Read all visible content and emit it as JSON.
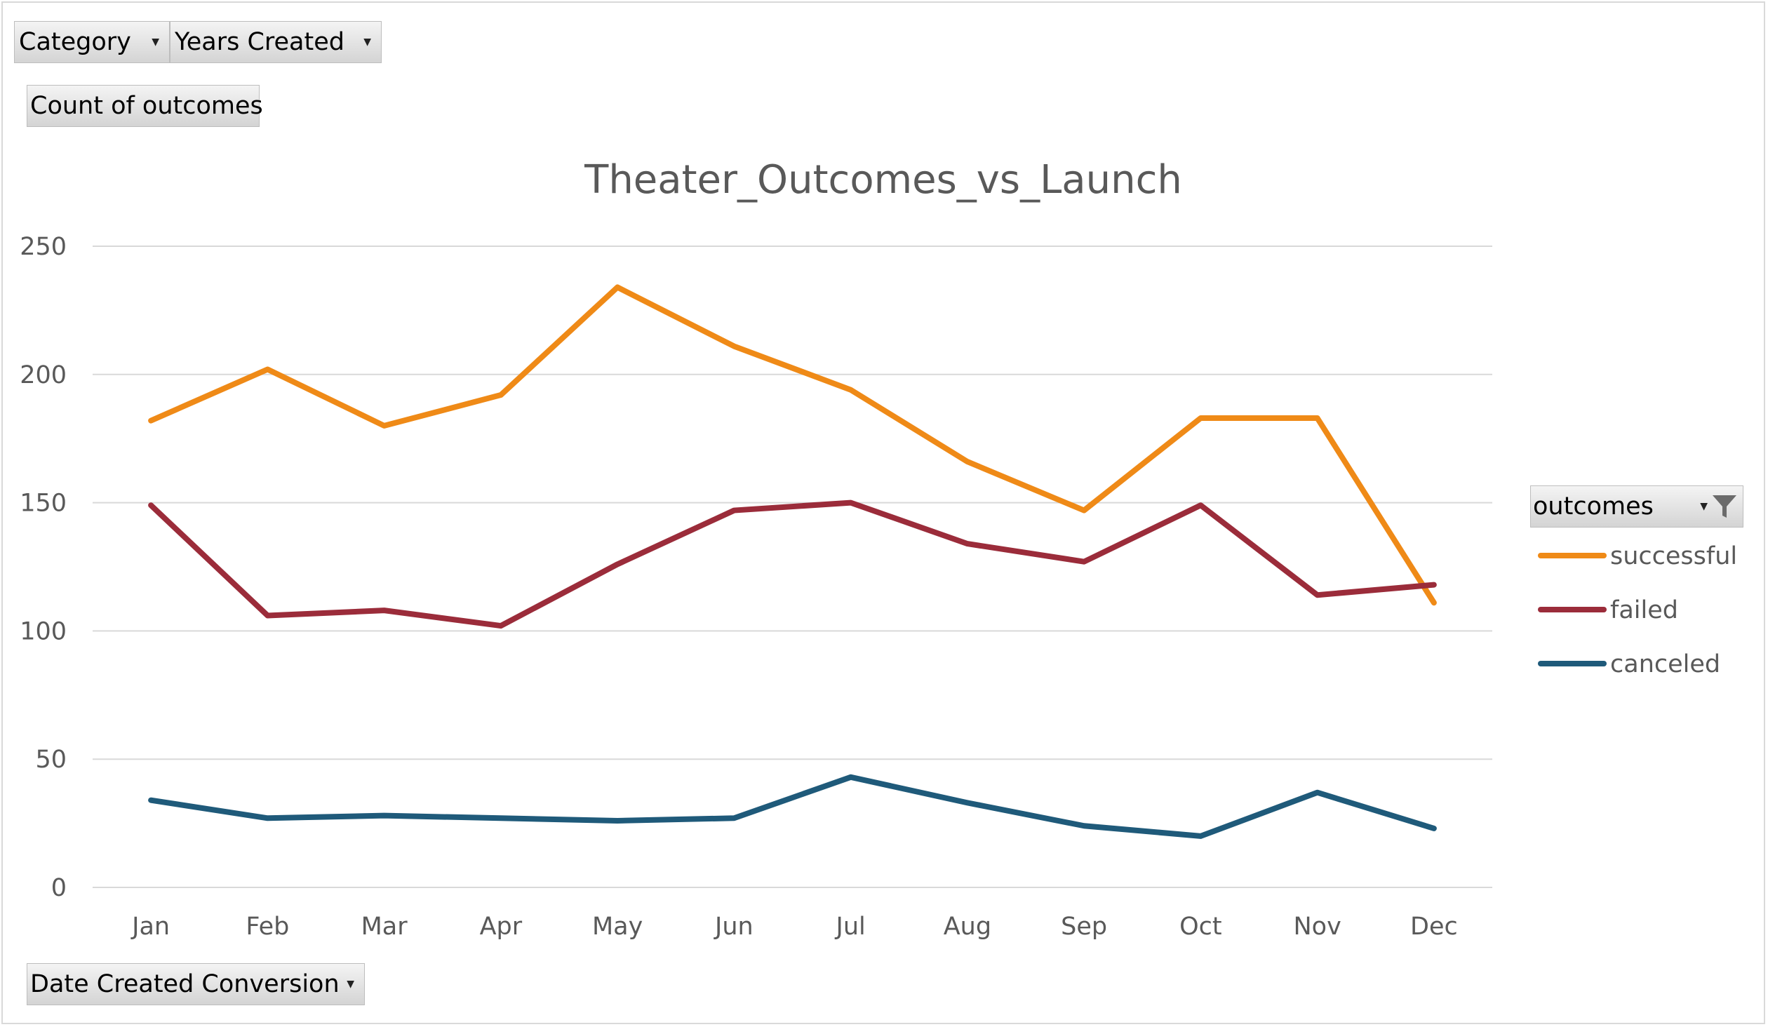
{
  "pivot": {
    "category_label": "Category",
    "years_label": "Years Created",
    "values_label": "Count of outcomes",
    "axis_field_label": "Date Created Conversion",
    "legend_field_label": "outcomes"
  },
  "icons": {
    "dropdown": "chevron-down-icon",
    "filter": "filter-funnel-icon"
  },
  "chart_data": {
    "type": "line",
    "title": "Theater_Outcomes_vs_Launch",
    "xlabel": "",
    "ylabel": "",
    "categories": [
      "Jan",
      "Feb",
      "Mar",
      "Apr",
      "May",
      "Jun",
      "Jul",
      "Aug",
      "Sep",
      "Oct",
      "Nov",
      "Dec"
    ],
    "ylim": [
      0,
      250
    ],
    "yticks": [
      0,
      50,
      100,
      150,
      200,
      250
    ],
    "grid": true,
    "legend_position": "right",
    "series": [
      {
        "name": "successful",
        "color": "#ef8a17",
        "values": [
          182,
          202,
          180,
          192,
          234,
          211,
          194,
          166,
          147,
          183,
          183,
          111
        ]
      },
      {
        "name": "failed",
        "color": "#9b2c3a",
        "values": [
          149,
          106,
          108,
          102,
          126,
          147,
          150,
          134,
          127,
          149,
          114,
          118
        ]
      },
      {
        "name": "canceled",
        "color": "#1f5a7a",
        "values": [
          34,
          27,
          28,
          27,
          26,
          27,
          43,
          33,
          24,
          20,
          37,
          23
        ]
      }
    ]
  }
}
